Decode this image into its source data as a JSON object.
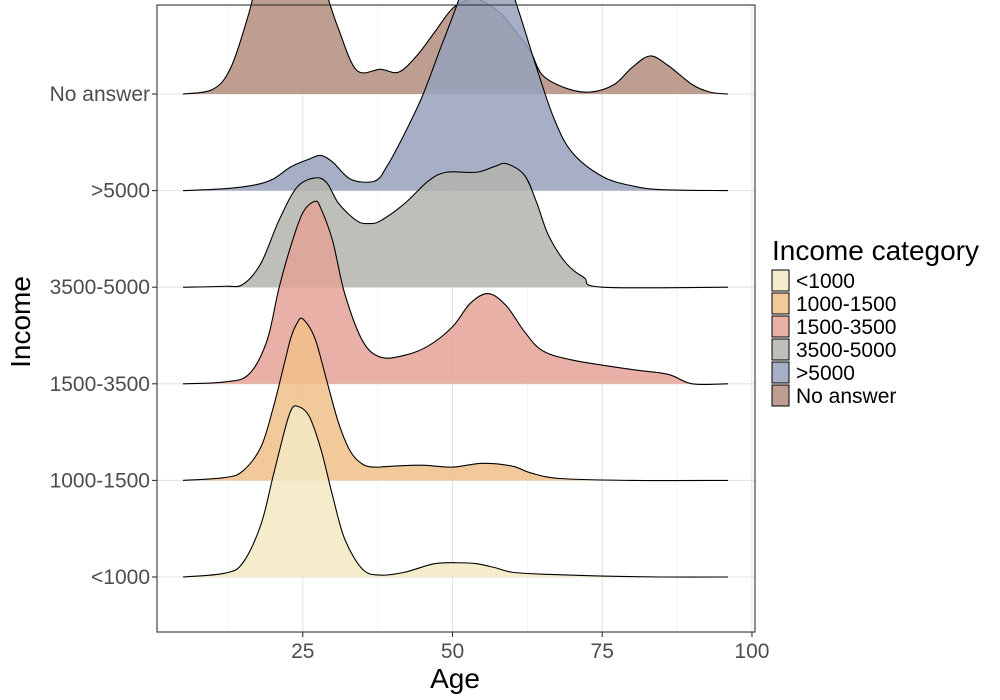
{
  "chart_data": {
    "type": "area",
    "subtype": "ridgeline-density",
    "xlabel": "Age",
    "ylabel": "Income",
    "xlim": [
      0,
      100
    ],
    "x_ticks": [
      25,
      50,
      75,
      100
    ],
    "x_tick_labels": [
      "25",
      "50",
      "75",
      "100"
    ],
    "grid": true,
    "legend": {
      "title": "Income category",
      "placement": "right"
    },
    "categories": [
      "<1000",
      "1000-1500",
      "1500-3500",
      "3500-5000",
      ">5000",
      "No answer"
    ],
    "series": [
      {
        "name": "<1000",
        "color": "#F3E9C3",
        "x": [
          5,
          12,
          15,
          18,
          20,
          22,
          23,
          24,
          26,
          28,
          30,
          32,
          35,
          38,
          42,
          47,
          51,
          54,
          57,
          60,
          65,
          75,
          85,
          96
        ],
        "y": [
          0.0,
          0.04,
          0.15,
          0.55,
          1.05,
          1.55,
          1.75,
          1.8,
          1.7,
          1.35,
          0.85,
          0.4,
          0.08,
          0.02,
          0.05,
          0.14,
          0.15,
          0.14,
          0.1,
          0.05,
          0.03,
          0.01,
          0.0,
          0.0
        ]
      },
      {
        "name": "1000-1500",
        "color": "#F0C08A",
        "x": [
          5,
          12,
          15,
          18,
          20,
          22,
          23,
          24,
          25,
          27,
          29,
          31,
          33,
          35,
          37,
          40,
          45,
          50,
          55,
          60,
          63,
          68,
          80,
          96
        ],
        "y": [
          0.0,
          0.03,
          0.1,
          0.35,
          0.75,
          1.25,
          1.5,
          1.65,
          1.7,
          1.5,
          1.05,
          0.6,
          0.3,
          0.17,
          0.14,
          0.15,
          0.16,
          0.14,
          0.18,
          0.15,
          0.08,
          0.02,
          0.0,
          0.0
        ]
      },
      {
        "name": "1500-3500",
        "color": "#E4A296",
        "x": [
          5,
          12,
          16,
          19,
          21,
          23,
          25,
          27,
          28,
          30,
          32,
          35,
          38,
          42,
          46,
          50,
          53,
          56,
          59,
          62,
          65,
          70,
          80,
          86,
          90,
          96
        ],
        "y": [
          0.0,
          0.02,
          0.1,
          0.45,
          1.0,
          1.45,
          1.8,
          1.92,
          1.85,
          1.5,
          0.95,
          0.45,
          0.28,
          0.3,
          0.4,
          0.6,
          0.85,
          0.95,
          0.82,
          0.55,
          0.35,
          0.25,
          0.15,
          0.1,
          0.0,
          0.0
        ]
      },
      {
        "name": "3500-5000",
        "color": "#B1B4AB",
        "x": [
          5,
          12,
          15,
          18,
          21,
          24,
          27,
          29,
          31,
          34,
          36,
          38,
          42,
          46,
          49,
          54,
          57,
          59,
          62,
          64,
          66,
          69,
          72,
          75,
          96
        ],
        "y": [
          0.0,
          0.01,
          0.03,
          0.25,
          0.7,
          1.05,
          1.15,
          1.1,
          0.88,
          0.7,
          0.67,
          0.7,
          0.88,
          1.12,
          1.21,
          1.21,
          1.27,
          1.3,
          1.18,
          0.9,
          0.55,
          0.25,
          0.1,
          0.0,
          0.0
        ]
      },
      {
        "name": ">5000",
        "color": "#98A1BC",
        "x": [
          5,
          12,
          17,
          20,
          23,
          26,
          28,
          30,
          33,
          37,
          39,
          42,
          45,
          48,
          51,
          53,
          56,
          58,
          61,
          64,
          67,
          70,
          75,
          80,
          85,
          96
        ],
        "y": [
          0.0,
          0.02,
          0.06,
          0.12,
          0.25,
          0.33,
          0.37,
          0.3,
          0.12,
          0.1,
          0.25,
          0.6,
          1.0,
          1.5,
          2.0,
          2.42,
          2.6,
          2.45,
          1.9,
          1.3,
          0.75,
          0.4,
          0.15,
          0.05,
          0.01,
          0.0
        ]
      },
      {
        "name": "No answer",
        "color": "#B38D7E",
        "x": [
          5,
          10,
          13,
          16,
          18,
          21,
          23,
          25,
          27,
          29,
          31,
          34,
          38,
          41,
          44,
          47,
          50,
          53,
          55,
          58,
          60,
          63,
          65,
          69,
          73,
          77,
          80,
          83,
          86,
          90,
          93,
          96
        ],
        "y": [
          0.0,
          0.05,
          0.28,
          0.85,
          1.35,
          1.7,
          1.83,
          1.75,
          1.45,
          1.05,
          0.68,
          0.25,
          0.26,
          0.23,
          0.4,
          0.65,
          0.9,
          1.0,
          0.98,
          0.85,
          0.7,
          0.45,
          0.2,
          0.06,
          0.02,
          0.1,
          0.28,
          0.4,
          0.3,
          0.1,
          0.02,
          0.0
        ]
      }
    ]
  }
}
